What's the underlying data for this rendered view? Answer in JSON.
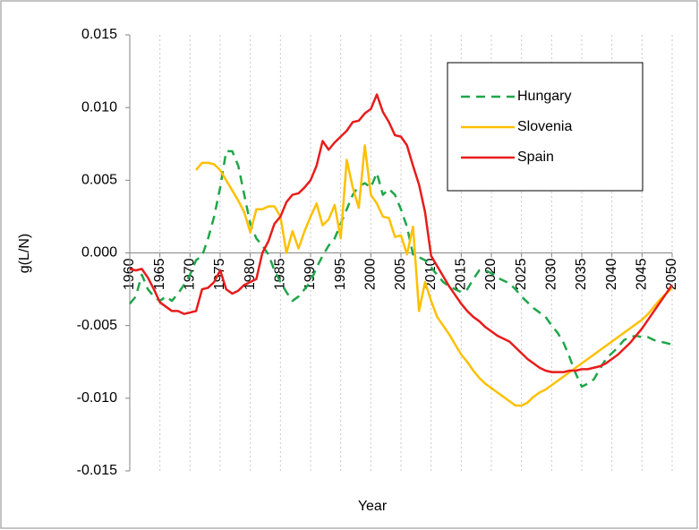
{
  "chart_data": {
    "type": "line",
    "x_label": "Year",
    "y_label": "g(L/N)",
    "x": [
      1960,
      1961,
      1962,
      1963,
      1964,
      1965,
      1966,
      1967,
      1968,
      1969,
      1970,
      1971,
      1972,
      1973,
      1974,
      1975,
      1976,
      1977,
      1978,
      1979,
      1980,
      1981,
      1982,
      1983,
      1984,
      1985,
      1986,
      1987,
      1988,
      1989,
      1990,
      1991,
      1992,
      1993,
      1994,
      1995,
      1996,
      1997,
      1998,
      1999,
      2000,
      2001,
      2002,
      2003,
      2004,
      2005,
      2006,
      2007,
      2008,
      2009,
      2010,
      2011,
      2012,
      2013,
      2014,
      2015,
      2016,
      2017,
      2018,
      2019,
      2020,
      2021,
      2022,
      2023,
      2024,
      2025,
      2026,
      2027,
      2028,
      2029,
      2030,
      2031,
      2032,
      2033,
      2034,
      2035,
      2036,
      2037,
      2038,
      2039,
      2040,
      2041,
      2042,
      2043,
      2044,
      2045,
      2046,
      2047,
      2048,
      2049,
      2050
    ],
    "series": [
      {
        "name": "Hungary",
        "color": "#1fa64a",
        "line_style": "dashed",
        "values": [
          -0.0035,
          -0.003,
          -0.0015,
          -0.0025,
          -0.003,
          -0.0033,
          -0.003,
          -0.0033,
          -0.0028,
          -0.0022,
          -0.0015,
          -0.0005,
          -0.0002,
          0.001,
          0.0025,
          0.0045,
          0.007,
          0.007,
          0.006,
          0.004,
          0.002,
          0.001,
          0.0005,
          -0.0001,
          -0.0012,
          -0.002,
          -0.0027,
          -0.0033,
          -0.003,
          -0.0025,
          -0.002,
          -0.001,
          -0.0002,
          0.0005,
          0.001,
          0.002,
          0.003,
          0.004,
          0.0046,
          0.0048,
          0.0045,
          0.0055,
          0.004,
          0.0044,
          0.004,
          0.003,
          0.0018,
          -0.0001,
          -0.0003,
          -0.0005,
          -0.001,
          -0.0015,
          -0.002,
          -0.0023,
          -0.0025,
          -0.0027,
          -0.0025,
          -0.0018,
          -0.0012,
          -0.0012,
          -0.0014,
          -0.0017,
          -0.0019,
          -0.0021,
          -0.0025,
          -0.003,
          -0.0034,
          -0.0038,
          -0.0041,
          -0.0044,
          -0.005,
          -0.0055,
          -0.0062,
          -0.0072,
          -0.0083,
          -0.0092,
          -0.009,
          -0.0087,
          -0.008,
          -0.0073,
          -0.0069,
          -0.0065,
          -0.006,
          -0.0058,
          -0.0057,
          -0.0058,
          -0.0058,
          -0.006,
          -0.0061,
          -0.0062,
          -0.0063
        ]
      },
      {
        "name": "Slovenia",
        "color": "#ffc000",
        "line_style": "solid",
        "values": [
          null,
          null,
          null,
          null,
          null,
          null,
          null,
          null,
          null,
          null,
          null,
          0.0057,
          0.0062,
          0.0062,
          0.0061,
          0.0057,
          0.005,
          0.0043,
          0.0036,
          0.0028,
          0.0014,
          0.003,
          0.003,
          0.0032,
          0.0032,
          0.0025,
          0.0,
          0.0015,
          0.0003,
          0.0015,
          0.0025,
          0.0034,
          0.0019,
          0.0023,
          0.0033,
          0.001,
          0.0064,
          0.0045,
          0.0031,
          0.0074,
          0.004,
          0.0034,
          0.0025,
          0.0024,
          0.0011,
          0.0012,
          -0.0001,
          0.0018,
          -0.004,
          -0.002,
          -0.0033,
          -0.0044,
          -0.005,
          -0.0056,
          -0.0063,
          -0.007,
          -0.0075,
          -0.0081,
          -0.0086,
          -0.009,
          -0.0093,
          -0.0096,
          -0.0099,
          -0.0102,
          -0.0105,
          -0.0105,
          -0.0103,
          -0.0099,
          -0.0096,
          -0.0094,
          -0.0091,
          -0.0088,
          -0.0085,
          -0.0082,
          -0.0079,
          -0.0076,
          -0.0073,
          -0.007,
          -0.0067,
          -0.0064,
          -0.0061,
          -0.0058,
          -0.0055,
          -0.0052,
          -0.0049,
          -0.0046,
          -0.0042,
          -0.0037,
          -0.0032,
          -0.0028,
          -0.0024
        ]
      },
      {
        "name": "Spain",
        "color": "#e81c1c",
        "line_style": "solid",
        "values": [
          -0.0011,
          -0.0012,
          -0.0011,
          -0.0017,
          -0.0025,
          -0.0034,
          -0.0037,
          -0.004,
          -0.004,
          -0.0042,
          -0.0041,
          -0.004,
          -0.0025,
          -0.0024,
          -0.002,
          -0.0012,
          -0.0025,
          -0.0028,
          -0.0026,
          -0.0022,
          -0.002,
          -0.0018,
          0.0,
          0.0008,
          0.002,
          0.0025,
          0.0035,
          0.004,
          0.0041,
          0.0045,
          0.005,
          0.006,
          0.0077,
          0.0071,
          0.0076,
          0.008,
          0.0084,
          0.009,
          0.0091,
          0.0096,
          0.0099,
          0.0109,
          0.0097,
          0.009,
          0.0081,
          0.008,
          0.0074,
          0.006,
          0.0047,
          0.0028,
          -0.0002,
          -0.0009,
          -0.0016,
          -0.0023,
          -0.0029,
          -0.0035,
          -0.004,
          -0.0044,
          -0.0047,
          -0.0051,
          -0.0054,
          -0.0057,
          -0.0059,
          -0.0061,
          -0.0065,
          -0.0069,
          -0.0073,
          -0.0076,
          -0.0079,
          -0.0081,
          -0.0082,
          -0.0082,
          -0.0082,
          -0.0081,
          -0.0081,
          -0.008,
          -0.008,
          -0.0079,
          -0.0078,
          -0.0076,
          -0.0073,
          -0.007,
          -0.0066,
          -0.0062,
          -0.0057,
          -0.0052,
          -0.0046,
          -0.004,
          -0.0034,
          -0.0028,
          -0.0022
        ]
      }
    ],
    "xlim": [
      1960,
      2050
    ],
    "xticks": [
      1960,
      1965,
      1970,
      1975,
      1980,
      1985,
      1990,
      1995,
      2000,
      2005,
      2010,
      2015,
      2020,
      2025,
      2030,
      2035,
      2040,
      2045,
      2050
    ],
    "ylim": [
      -0.015,
      0.015
    ],
    "yticks": [
      -0.015,
      {
        "value": -0.01,
        "label": "-0.010"
      },
      -0.005,
      {
        "value": 0,
        "label": "0.000"
      },
      0.005,
      {
        "value": 0.01,
        "label": "0.010"
      },
      0.015
    ],
    "grid": "x",
    "legend": "upper right"
  }
}
